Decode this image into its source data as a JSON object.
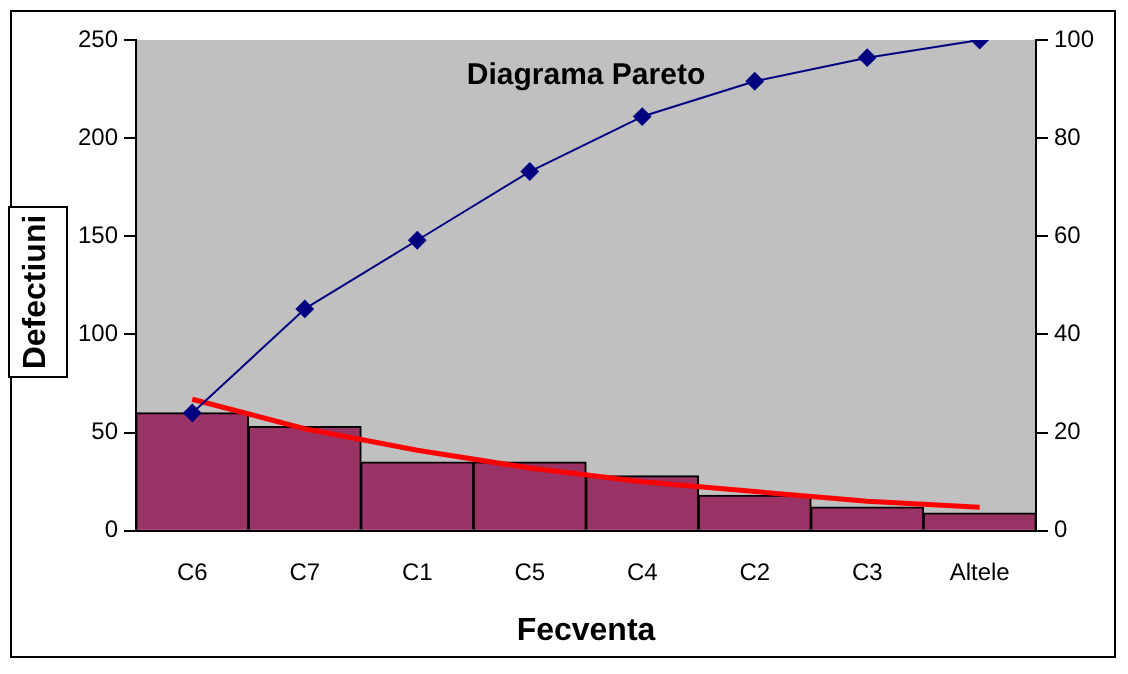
{
  "chart_data": {
    "type": "bar",
    "title": "Diagrama Pareto",
    "xlabel": "Fecventa",
    "ylabel": "Defectiuni",
    "categories": [
      "C6",
      "C7",
      "C1",
      "C5",
      "C4",
      "C2",
      "C3",
      "Altele"
    ],
    "series": [
      {
        "color": "#993366",
        "values": [
          60,
          53,
          35,
          35,
          28,
          18,
          12,
          9
        ]
      },
      {
        "type": "line",
        "axis": "y2",
        "color": "#000080",
        "marker": "diamond",
        "values": [
          24,
          45.2,
          59.2,
          73.2,
          84.4,
          91.6,
          96.4,
          100
        ]
      },
      {
        "type": "line",
        "color": "#ff0000",
        "marker": "none",
        "x": [
          "C6",
          "C7",
          "C1",
          "C5",
          "C4",
          "C2",
          "C3",
          "Altele"
        ],
        "values": [
          67,
          52,
          41,
          32,
          25,
          20,
          15,
          12
        ]
      }
    ],
    "ylim": [
      0,
      250
    ],
    "yticks": [
      0,
      50,
      100,
      150,
      200,
      250
    ],
    "y2lim": [
      0,
      100
    ],
    "y2ticks": [
      0,
      20,
      40,
      60,
      80,
      100
    ],
    "grid": false,
    "legend": false
  }
}
